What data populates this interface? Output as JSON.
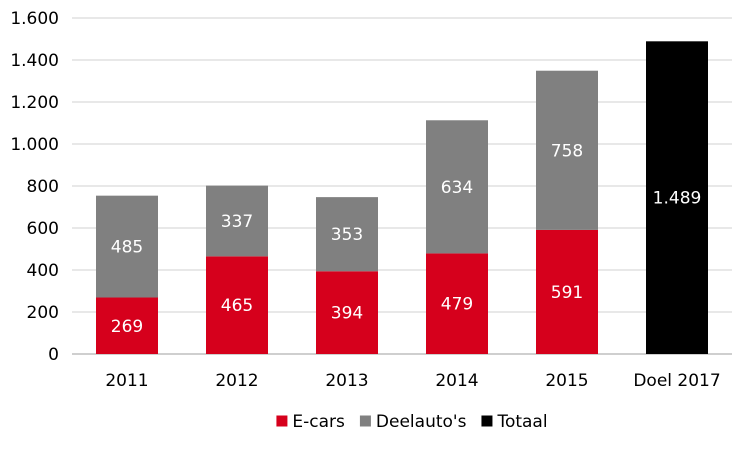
{
  "chart_data": {
    "type": "bar",
    "stacked": true,
    "categories": [
      "2011",
      "2012",
      "2013",
      "2014",
      "2015",
      "Doel 2017"
    ],
    "series": [
      {
        "name": "E-cars",
        "color": "#d6001c",
        "values": [
          269,
          465,
          394,
          479,
          591,
          null
        ],
        "labels": [
          "269",
          "465",
          "394",
          "479",
          "591",
          ""
        ]
      },
      {
        "name": "Deelauto's",
        "color": "#808080",
        "values": [
          485,
          337,
          353,
          634,
          758,
          null
        ],
        "labels": [
          "485",
          "337",
          "353",
          "634",
          "758",
          ""
        ]
      },
      {
        "name": "Totaal",
        "color": "#000000",
        "values": [
          null,
          null,
          null,
          null,
          null,
          1489
        ],
        "labels": [
          "",
          "",
          "",
          "",
          "",
          "1.489"
        ]
      }
    ],
    "yticks": [
      0,
      200,
      400,
      600,
      800,
      1000,
      1200,
      1400,
      1600
    ],
    "ytick_labels": [
      "0",
      "200",
      "400",
      "600",
      "800",
      "1.000",
      "1.200",
      "1.400",
      "1.600"
    ],
    "ylim": [
      0,
      1600
    ],
    "grid": true,
    "legend": "bottom",
    "title": "",
    "xlabel": "",
    "ylabel": ""
  }
}
